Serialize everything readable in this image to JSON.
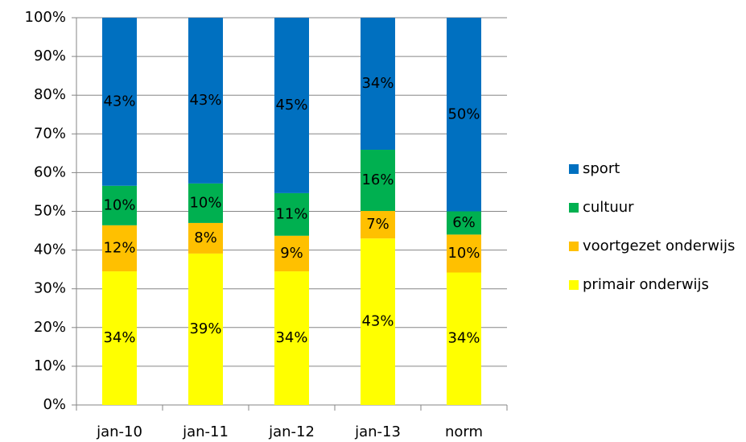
{
  "chart_data": {
    "type": "bar",
    "stacked": true,
    "categories": [
      "jan-10",
      "jan-11",
      "jan-12",
      "jan-13",
      "norm"
    ],
    "series": [
      {
        "name": "primair onderwijs",
        "color": "#ffff00",
        "values": [
          34.5,
          39.1,
          34.5,
          43.0,
          34.2
        ],
        "value_labels": [
          "34%",
          "39%",
          "34%",
          "43%",
          "34%"
        ]
      },
      {
        "name": "voortgezet onderwijs",
        "color": "#ffc000",
        "values": [
          11.9,
          7.9,
          9.2,
          7.1,
          9.8
        ],
        "value_labels": [
          "12%",
          "8%",
          "9%",
          "7%",
          "10%"
        ]
      },
      {
        "name": "cultuur",
        "color": "#00b050",
        "values": [
          10.2,
          10.2,
          11.0,
          15.8,
          6.0
        ],
        "value_labels": [
          "10%",
          "10%",
          "11%",
          "16%",
          "6%"
        ]
      },
      {
        "name": "sport",
        "color": "#0070c0",
        "values": [
          43.4,
          42.8,
          45.3,
          34.1,
          50.0
        ],
        "value_labels": [
          "43%",
          "43%",
          "45%",
          "34%",
          "50%"
        ]
      }
    ],
    "ylim": [
      0,
      100
    ],
    "yticks": [
      {
        "value": 0,
        "label": "0%"
      },
      {
        "value": 10,
        "label": "10%"
      },
      {
        "value": 20,
        "label": "20%"
      },
      {
        "value": 30,
        "label": "30%"
      },
      {
        "value": 40,
        "label": "40%"
      },
      {
        "value": 50,
        "label": "50%"
      },
      {
        "value": 60,
        "label": "60%"
      },
      {
        "value": 70,
        "label": "70%"
      },
      {
        "value": 80,
        "label": "80%"
      },
      {
        "value": 90,
        "label": "90%"
      },
      {
        "value": 100,
        "label": "100%"
      }
    ],
    "grid": true,
    "legend": "right"
  }
}
